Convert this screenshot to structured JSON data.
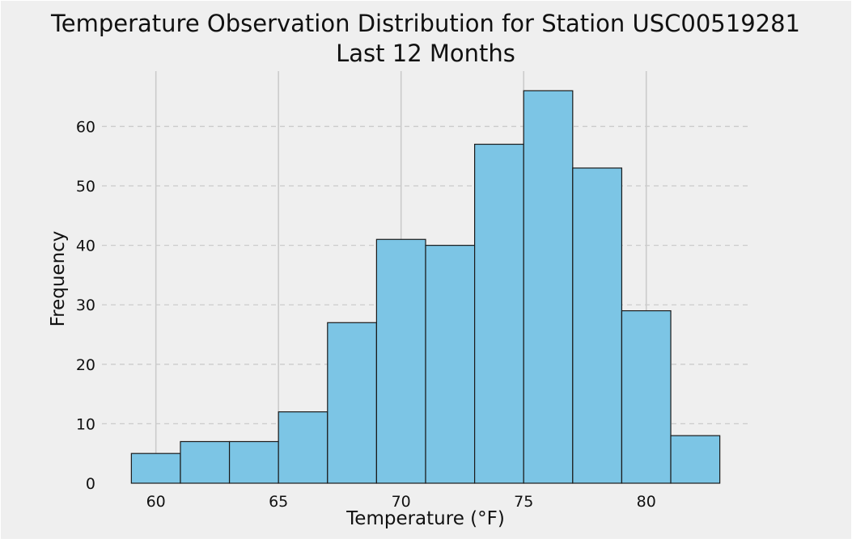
{
  "chart_data": {
    "type": "bar",
    "title": "Temperature Observation Distribution for Station USC00519281",
    "subtitle": "Last 12 Months",
    "xlabel": "Temperature (°F)",
    "ylabel": "Frequency",
    "bins": [
      {
        "start": 59.0,
        "end": 61.0,
        "count": 5
      },
      {
        "start": 61.0,
        "end": 63.0,
        "count": 7
      },
      {
        "start": 63.0,
        "end": 65.0,
        "count": 7
      },
      {
        "start": 65.0,
        "end": 67.0,
        "count": 12
      },
      {
        "start": 67.0,
        "end": 69.0,
        "count": 27
      },
      {
        "start": 69.0,
        "end": 71.0,
        "count": 41
      },
      {
        "start": 71.0,
        "end": 73.0,
        "count": 40
      },
      {
        "start": 73.0,
        "end": 75.0,
        "count": 57
      },
      {
        "start": 75.0,
        "end": 77.0,
        "count": 66
      },
      {
        "start": 77.0,
        "end": 79.0,
        "count": 53
      },
      {
        "start": 79.0,
        "end": 81.0,
        "count": 29
      },
      {
        "start": 81.0,
        "end": 83.0,
        "count": 8
      }
    ],
    "x_ticks": [
      60,
      65,
      70,
      75,
      80
    ],
    "y_ticks": [
      0,
      10,
      20,
      30,
      40,
      50,
      60
    ],
    "xlim": [
      57.8,
      84.2
    ],
    "ylim": [
      0,
      69.3
    ],
    "grid": {
      "x": "solid",
      "y": "dashed"
    },
    "legend": "none",
    "colors": {
      "bar_fill": "#7cc5e5",
      "bar_edge": "#1a1a1a",
      "background": "#efefef",
      "grid": "#cbcbcb"
    }
  }
}
